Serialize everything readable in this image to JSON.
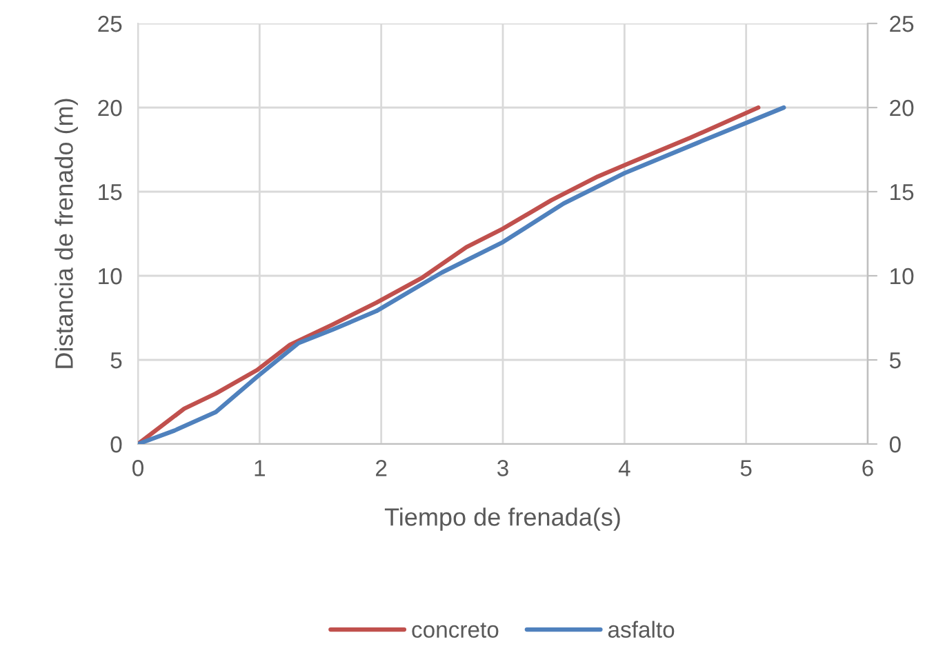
{
  "chart_data": {
    "type": "line",
    "xlabel": "Tiempo de frenada(s)",
    "ylabel": "Distancia de frenado (m)",
    "series": [
      {
        "name": "concreto",
        "color": "#c0504d",
        "x": [
          0,
          0.38,
          0.64,
          0.98,
          1.25,
          1.6,
          1.96,
          2.34,
          2.7,
          3.0,
          3.4,
          3.78,
          4.04,
          4.54,
          5.1
        ],
        "values": [
          0,
          2.1,
          3.0,
          4.4,
          5.9,
          7.1,
          8.4,
          9.9,
          11.7,
          12.8,
          14.5,
          15.9,
          16.7,
          18.2,
          20.0
        ]
      },
      {
        "name": "asfalto",
        "color": "#4f81bd",
        "x": [
          0,
          0.3,
          0.64,
          0.98,
          1.32,
          1.6,
          1.96,
          2.5,
          3.0,
          3.5,
          4.0,
          4.6,
          5.31
        ],
        "values": [
          0,
          0.8,
          1.9,
          4.0,
          6.0,
          6.8,
          7.9,
          10.2,
          12.0,
          14.3,
          16.1,
          17.9,
          20.0
        ]
      }
    ],
    "xlim": [
      0,
      6
    ],
    "xticks": [
      0,
      1,
      2,
      3,
      4,
      5,
      6
    ],
    "ylim": [
      0,
      25
    ],
    "yticks": [
      0,
      5,
      10,
      15,
      20,
      25
    ],
    "y2lim": [
      0,
      25
    ],
    "y2ticks": [
      0,
      5,
      10,
      15,
      20,
      25
    ],
    "grid": true,
    "legend": "bottom",
    "marker": "none",
    "line_style": "solid"
  }
}
